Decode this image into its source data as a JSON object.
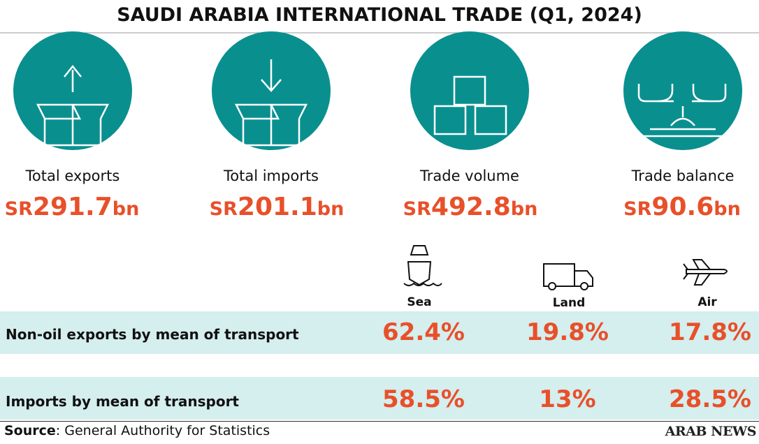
{
  "title": "SAUDI ARABIA INTERNATIONAL TRADE (Q1, 2024)",
  "stats": [
    {
      "label": "Total exports",
      "prefix": "SR",
      "amount": "291.7",
      "unit": "bn"
    },
    {
      "label": "Total imports",
      "prefix": "SR",
      "amount": "201.1",
      "unit": "bn"
    },
    {
      "label": "Trade volume",
      "prefix": "SR",
      "amount": "492.8",
      "unit": "bn"
    },
    {
      "label": "Trade balance",
      "prefix": "SR",
      "amount": "90.6",
      "unit": "bn"
    }
  ],
  "table": {
    "columns": [
      "Sea",
      "Land",
      "Air"
    ],
    "rows": [
      {
        "label": "Non-oil exports by mean of transport",
        "cells": [
          "62.4%",
          "19.8%",
          "17.8%"
        ]
      },
      {
        "label": "Imports by mean of transport",
        "cells": [
          "58.5%",
          "13%",
          "28.5%"
        ]
      }
    ]
  },
  "footer": {
    "source_label": "Source",
    "source_text": ": General Authority for Statistics",
    "brand": "ARAB NEWS"
  }
}
